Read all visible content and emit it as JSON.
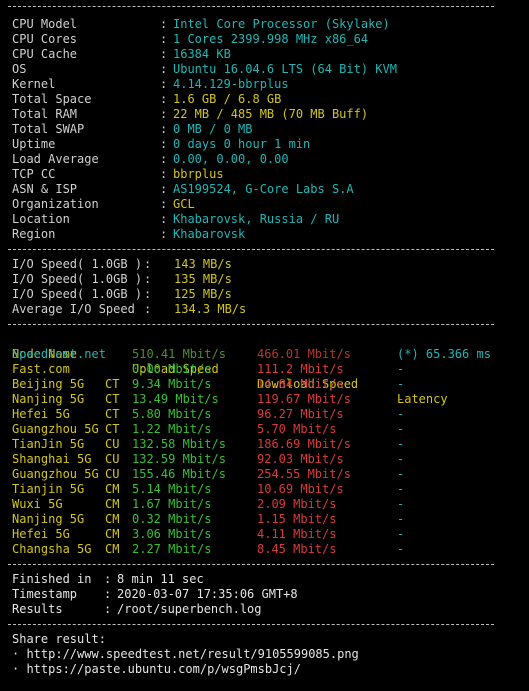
{
  "top_fragment": "· ·  ·  · ·  · · ·  ·   · · · · ·  · ·   ·   · · · ·  ·  ·",
  "sysinfo": [
    {
      "key": "CPU Model",
      "value": "Intel Core Processor (Skylake)",
      "color": "#1fb6b6"
    },
    {
      "key": "CPU Cores",
      "value": "1 Cores 2399.998 MHz x86_64",
      "color": "#1fb6b6"
    },
    {
      "key": "CPU Cache",
      "value": "16384 KB",
      "color": "#1fb6b6"
    },
    {
      "key": "OS",
      "value": "Ubuntu 16.04.6 LTS (64 Bit) KVM",
      "color": "#1fb6b6"
    },
    {
      "key": "Kernel",
      "value": "4.14.129-bbrplus",
      "color": "#1fb6b6"
    },
    {
      "key": "Total Space",
      "value": "1.6 GB / 6.8 GB",
      "color": "#d3c61a"
    },
    {
      "key": "Total RAM",
      "value": "22 MB / 485 MB (70 MB Buff)",
      "color": "#d3c61a"
    },
    {
      "key": "Total SWAP",
      "value": "0 MB / 0 MB",
      "color": "#1fb6b6"
    },
    {
      "key": "Uptime",
      "value": "0 days 0 hour 1 min",
      "color": "#1fb6b6"
    },
    {
      "key": "Load Average",
      "value": "0.00, 0.00, 0.00",
      "color": "#1fb6b6"
    },
    {
      "key": "TCP CC",
      "value": "bbrplus",
      "color": "#d3c61a"
    },
    {
      "key": "ASN & ISP",
      "value": "AS199524, G-Core Labs S.A",
      "color": "#1fb6b6"
    },
    {
      "key": "Organization",
      "value": "GCL",
      "color": "#d3c61a"
    },
    {
      "key": "Location",
      "value": "Khabarovsk, Russia / RU",
      "color": "#1fb6b6"
    },
    {
      "key": "Region",
      "value": "Khabarovsk",
      "color": "#1fb6b6"
    }
  ],
  "io": [
    {
      "key": "I/O Speed( 1.0GB )",
      "value": "143 MB/s"
    },
    {
      "key": "I/O Speed( 1.0GB )",
      "value": "135 MB/s"
    },
    {
      "key": "I/O Speed( 1.0GB )",
      "value": "125 MB/s"
    },
    {
      "key": "Average I/O Speed",
      "value": "134.3 MB/s"
    }
  ],
  "speed_header": {
    "node": "Node Name",
    "upload": "Upload Speed",
    "download": "Download Speed",
    "latency": "Latency"
  },
  "speed_rows": [
    {
      "node": "Speedtest.net",
      "isp": "",
      "upload": "510.41 Mbit/s",
      "download": "466.01 Mbit/s",
      "latency": "(*) 65.366 ms"
    },
    {
      "node": "Fast.com",
      "isp": "",
      "upload": "0.00 Mbit/s",
      "download": "111.2 Mbit/s",
      "latency": "-"
    },
    {
      "node": "Beijing 5G",
      "isp": "CT",
      "upload": "9.34 Mbit/s",
      "download": "14.84 Mbit/s",
      "latency": "-"
    },
    {
      "node": "Nanjing 5G",
      "isp": "CT",
      "upload": "13.49 Mbit/s",
      "download": "119.67 Mbit/s",
      "latency": "-"
    },
    {
      "node": "Hefei 5G",
      "isp": "CT",
      "upload": "5.80 Mbit/s",
      "download": "96.27 Mbit/s",
      "latency": "-"
    },
    {
      "node": "Guangzhou 5G",
      "isp": "CT",
      "upload": "1.22 Mbit/s",
      "download": "5.70 Mbit/s",
      "latency": "-"
    },
    {
      "node": "TianJin 5G",
      "isp": "CU",
      "upload": "132.58 Mbit/s",
      "download": "186.69 Mbit/s",
      "latency": "-"
    },
    {
      "node": "Shanghai 5G",
      "isp": "CU",
      "upload": "132.59 Mbit/s",
      "download": "92.03 Mbit/s",
      "latency": "-"
    },
    {
      "node": "Guangzhou 5G",
      "isp": "CU",
      "upload": "155.46 Mbit/s",
      "download": "254.55 Mbit/s",
      "latency": "-"
    },
    {
      "node": "Tianjin 5G",
      "isp": "CM",
      "upload": "5.14 Mbit/s",
      "download": "10.69 Mbit/s",
      "latency": "-"
    },
    {
      "node": "Wuxi 5G",
      "isp": "CM",
      "upload": "1.67 Mbit/s",
      "download": "2.09 Mbit/s",
      "latency": "-"
    },
    {
      "node": "Nanjing 5G",
      "isp": "CM",
      "upload": "0.32 Mbit/s",
      "download": "1.15 Mbit/s",
      "latency": "-"
    },
    {
      "node": "Hefei 5G",
      "isp": "CM",
      "upload": "3.06 Mbit/s",
      "download": "4.11 Mbit/s",
      "latency": "-"
    },
    {
      "node": "Changsha 5G",
      "isp": "CM",
      "upload": "2.27 Mbit/s",
      "download": "8.45 Mbit/s",
      "latency": "-"
    }
  ],
  "footer": [
    {
      "key": "Finished in",
      "value": "8 min 11 sec"
    },
    {
      "key": "Timestamp",
      "value": "2020-03-07 17:35:06 GMT+8"
    },
    {
      "key": "Results",
      "value": "/root/superbench.log"
    }
  ],
  "share": {
    "title": "Share result:",
    "links": [
      "· http://www.speedtest.net/result/9105599085.png",
      "· https://paste.ubuntu.com/p/wsgPmsbJcj/"
    ]
  },
  "colon": ":",
  "colors": {
    "background": "#000000",
    "text": "#d0d0d0",
    "cyan": "#1fb6b6",
    "yellow": "#d3c61a",
    "green": "#36c036",
    "red": "#d93a3a",
    "dim_green": "#4d8d2f",
    "dim_red": "#b3382b"
  }
}
